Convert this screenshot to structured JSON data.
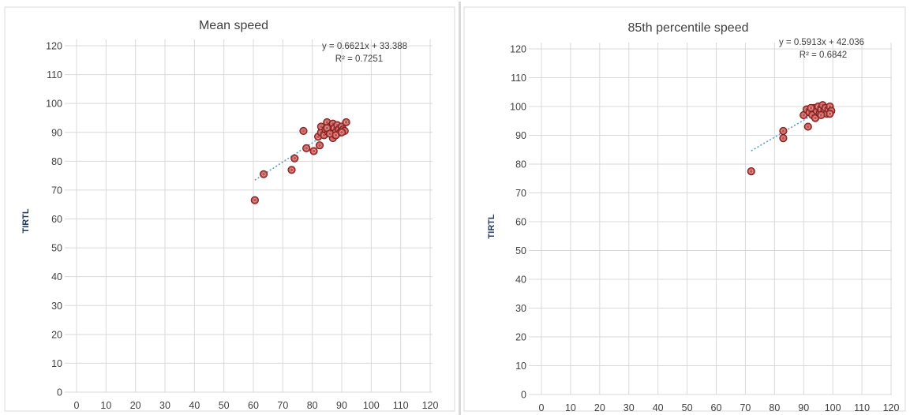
{
  "colors": {
    "grid": "#d9d9d9",
    "text": "#404040",
    "axis_title": "#1f3864",
    "marker_fill": "#c0504d",
    "marker_edge": "#7b1b1b",
    "trendline": "#5b9bd5"
  },
  "chart_data": [
    {
      "type": "scatter",
      "title": "Mean speed",
      "xlabel": "",
      "ylabel": "TIRTL",
      "xlim": [
        0,
        120
      ],
      "ylim": [
        0,
        120
      ],
      "xticks": [
        "0",
        "10",
        "20",
        "30",
        "40",
        "50",
        "60",
        "70",
        "80",
        "90",
        "100",
        "110",
        "120"
      ],
      "yticks": [
        "0",
        "10",
        "20",
        "30",
        "40",
        "50",
        "60",
        "70",
        "80",
        "90",
        "100",
        "110",
        "120"
      ],
      "grid": true,
      "legend": "none",
      "trendline": {
        "style": "dotted",
        "equation": "y = 0.6621x + 33.388",
        "r2": "R² = 0.7251",
        "slope": 0.6621,
        "intercept": 33.388,
        "x_range": [
          60.5,
          91.5
        ]
      },
      "points": [
        {
          "x": 60.5,
          "y": 66.5
        },
        {
          "x": 63.5,
          "y": 75.5
        },
        {
          "x": 73,
          "y": 77
        },
        {
          "x": 74,
          "y": 81
        },
        {
          "x": 77,
          "y": 90.5
        },
        {
          "x": 78,
          "y": 84.5
        },
        {
          "x": 80.5,
          "y": 83.5
        },
        {
          "x": 82.5,
          "y": 85.5
        },
        {
          "x": 82,
          "y": 88.5
        },
        {
          "x": 83,
          "y": 90
        },
        {
          "x": 83,
          "y": 92
        },
        {
          "x": 84,
          "y": 89
        },
        {
          "x": 84.5,
          "y": 91
        },
        {
          "x": 85,
          "y": 93.5
        },
        {
          "x": 85.5,
          "y": 90
        },
        {
          "x": 86,
          "y": 92
        },
        {
          "x": 86.5,
          "y": 90.5
        },
        {
          "x": 87,
          "y": 88
        },
        {
          "x": 87,
          "y": 93
        },
        {
          "x": 87.5,
          "y": 91.5
        },
        {
          "x": 88,
          "y": 90
        },
        {
          "x": 88.5,
          "y": 92.5
        },
        {
          "x": 89,
          "y": 91
        },
        {
          "x": 89.5,
          "y": 90
        },
        {
          "x": 90,
          "y": 92
        },
        {
          "x": 90.5,
          "y": 91
        },
        {
          "x": 91,
          "y": 90.5
        },
        {
          "x": 91.5,
          "y": 93.5
        },
        {
          "x": 85,
          "y": 91.5
        },
        {
          "x": 86,
          "y": 89.5
        },
        {
          "x": 88,
          "y": 89
        },
        {
          "x": 90,
          "y": 90
        }
      ]
    },
    {
      "type": "scatter",
      "title": "85th percentile speed",
      "xlabel": "",
      "ylabel": "TIRTL",
      "xlim": [
        0,
        120
      ],
      "ylim": [
        0,
        120
      ],
      "xticks": [
        "0",
        "10",
        "20",
        "30",
        "40",
        "50",
        "60",
        "70",
        "80",
        "90",
        "100",
        "110",
        "120"
      ],
      "yticks": [
        "0",
        "10",
        "20",
        "30",
        "40",
        "50",
        "60",
        "70",
        "80",
        "90",
        "100",
        "110",
        "120"
      ],
      "grid": true,
      "legend": "none",
      "trendline": {
        "style": "dotted",
        "equation": "y = 0.5913x + 42.036",
        "r2": "R² = 0.6842",
        "slope": 0.5913,
        "intercept": 42.036,
        "x_range": [
          72,
          99.5
        ]
      },
      "points": [
        {
          "x": 72,
          "y": 77.5
        },
        {
          "x": 83,
          "y": 91.5
        },
        {
          "x": 83,
          "y": 89
        },
        {
          "x": 91.5,
          "y": 93
        },
        {
          "x": 90,
          "y": 97
        },
        {
          "x": 91,
          "y": 99
        },
        {
          "x": 92,
          "y": 98
        },
        {
          "x": 93,
          "y": 97
        },
        {
          "x": 93.5,
          "y": 99.5
        },
        {
          "x": 94,
          "y": 96
        },
        {
          "x": 94.5,
          "y": 98.5
        },
        {
          "x": 95,
          "y": 100
        },
        {
          "x": 95.5,
          "y": 97.5
        },
        {
          "x": 96,
          "y": 99
        },
        {
          "x": 96.5,
          "y": 100.5
        },
        {
          "x": 97,
          "y": 98
        },
        {
          "x": 97.5,
          "y": 99.5
        },
        {
          "x": 98,
          "y": 97.5
        },
        {
          "x": 98.5,
          "y": 99
        },
        {
          "x": 99,
          "y": 100
        },
        {
          "x": 99.5,
          "y": 98.5
        },
        {
          "x": 99,
          "y": 97.5
        },
        {
          "x": 92.5,
          "y": 99.5
        },
        {
          "x": 96,
          "y": 97
        }
      ]
    }
  ]
}
